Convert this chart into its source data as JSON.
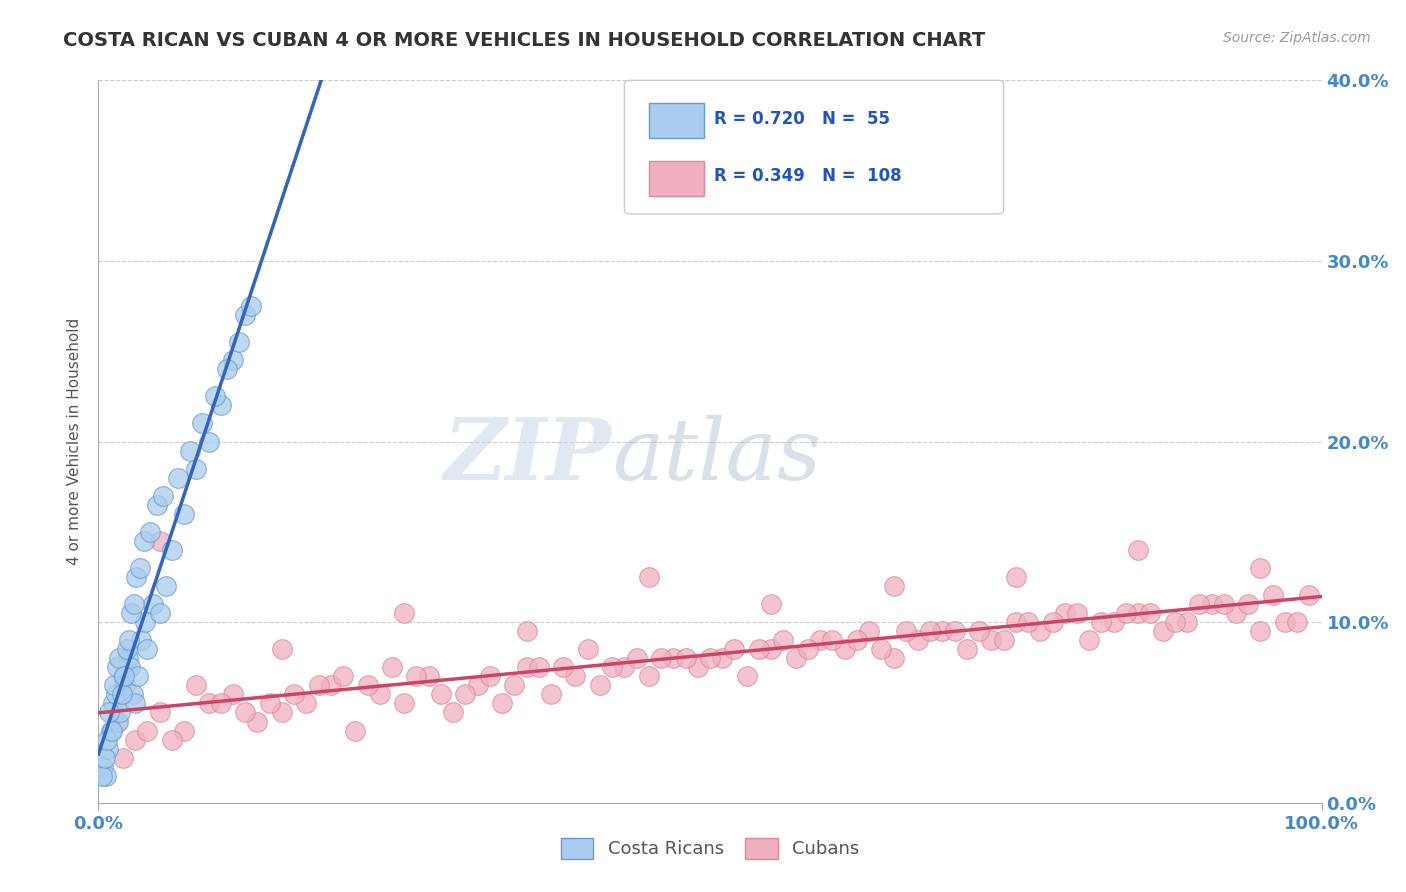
{
  "title": "COSTA RICAN VS CUBAN 4 OR MORE VEHICLES IN HOUSEHOLD CORRELATION CHART",
  "source": "Source: ZipAtlas.com",
  "ylabel": "4 or more Vehicles in Household",
  "ylabel_right_ticks": [
    "0.0%",
    "10.0%",
    "20.0%",
    "30.0%",
    "40.0%"
  ],
  "legend_costa": "Costa Ricans",
  "legend_cuban": "Cubans",
  "r_costa": "0.720",
  "n_costa": "55",
  "r_cuban": "0.349",
  "n_cuban": "108",
  "watermark_zip": "ZIP",
  "watermark_atlas": "atlas",
  "bg_color": "#ffffff",
  "plot_bg": "#ffffff",
  "grid_color": "#cccccc",
  "costa_color": "#aaccee",
  "cuban_color": "#f0b0c0",
  "costa_edge_color": "#6699cc",
  "cuban_edge_color": "#dd8899",
  "costa_line_color": "#3366bb",
  "cuban_line_color": "#cc4466",
  "title_color": "#333333",
  "source_color": "#999999",
  "axis_label_color": "#4488cc",
  "xlim": [
    0,
    100
  ],
  "ylim": [
    0,
    40
  ],
  "ytick_vals": [
    0,
    10,
    20,
    30,
    40
  ],
  "costa_scatter_x": [
    0.4,
    0.6,
    0.8,
    1.0,
    1.2,
    1.4,
    1.6,
    1.8,
    2.0,
    2.2,
    2.4,
    2.6,
    2.8,
    3.0,
    3.2,
    3.5,
    3.8,
    4.0,
    4.5,
    5.0,
    5.5,
    6.0,
    7.0,
    8.0,
    9.0,
    10.0,
    11.0,
    12.0,
    0.3,
    0.5,
    0.7,
    0.9,
    1.1,
    1.3,
    1.5,
    1.7,
    1.9,
    2.1,
    2.3,
    2.5,
    2.7,
    2.9,
    3.1,
    3.4,
    3.7,
    4.2,
    4.8,
    5.3,
    6.5,
    7.5,
    8.5,
    9.5,
    10.5,
    11.5,
    12.5
  ],
  "costa_scatter_y": [
    2.0,
    1.5,
    3.0,
    4.0,
    5.5,
    6.0,
    4.5,
    5.0,
    7.0,
    6.5,
    8.0,
    7.5,
    6.0,
    5.5,
    7.0,
    9.0,
    10.0,
    8.5,
    11.0,
    10.5,
    12.0,
    14.0,
    16.0,
    18.5,
    20.0,
    22.0,
    24.5,
    27.0,
    1.5,
    2.5,
    3.5,
    5.0,
    4.0,
    6.5,
    7.5,
    8.0,
    6.0,
    7.0,
    8.5,
    9.0,
    10.5,
    11.0,
    12.5,
    13.0,
    14.5,
    15.0,
    16.5,
    17.0,
    18.0,
    19.5,
    21.0,
    22.5,
    24.0,
    25.5,
    27.5
  ],
  "cuban_scatter_x": [
    1.5,
    3.0,
    5.0,
    7.0,
    9.0,
    11.0,
    13.0,
    15.0,
    17.0,
    19.0,
    21.0,
    23.0,
    25.0,
    27.0,
    29.0,
    31.0,
    33.0,
    35.0,
    37.0,
    39.0,
    41.0,
    43.0,
    45.0,
    47.0,
    49.0,
    51.0,
    53.0,
    55.0,
    57.0,
    59.0,
    61.0,
    63.0,
    65.0,
    67.0,
    69.0,
    71.0,
    73.0,
    75.0,
    77.0,
    79.0,
    81.0,
    83.0,
    85.0,
    87.0,
    89.0,
    91.0,
    93.0,
    95.0,
    97.0,
    99.0,
    4.0,
    8.0,
    14.0,
    20.0,
    28.0,
    36.0,
    44.0,
    52.0,
    60.0,
    68.0,
    76.0,
    84.0,
    92.0,
    98.0,
    6.0,
    12.0,
    18.0,
    26.0,
    34.0,
    42.0,
    50.0,
    58.0,
    66.0,
    74.0,
    82.0,
    90.0,
    10.0,
    16.0,
    24.0,
    32.0,
    40.0,
    48.0,
    56.0,
    64.0,
    72.0,
    80.0,
    88.0,
    96.0,
    2.0,
    22.0,
    30.0,
    38.0,
    46.0,
    54.0,
    62.0,
    70.0,
    78.0,
    86.0,
    94.0,
    5.0,
    15.0,
    25.0,
    35.0,
    45.0,
    55.0,
    65.0,
    75.0,
    85.0,
    95.0
  ],
  "cuban_scatter_y": [
    4.5,
    3.5,
    5.0,
    4.0,
    5.5,
    6.0,
    4.5,
    5.0,
    5.5,
    6.5,
    4.0,
    6.0,
    5.5,
    7.0,
    5.0,
    6.5,
    5.5,
    7.5,
    6.0,
    7.0,
    6.5,
    7.5,
    7.0,
    8.0,
    7.5,
    8.0,
    7.0,
    8.5,
    8.0,
    9.0,
    8.5,
    9.5,
    8.0,
    9.0,
    9.5,
    8.5,
    9.0,
    10.0,
    9.5,
    10.5,
    9.0,
    10.0,
    10.5,
    9.5,
    10.0,
    11.0,
    10.5,
    9.5,
    10.0,
    11.5,
    4.0,
    6.5,
    5.5,
    7.0,
    6.0,
    7.5,
    8.0,
    8.5,
    9.0,
    9.5,
    10.0,
    10.5,
    11.0,
    10.0,
    3.5,
    5.0,
    6.5,
    7.0,
    6.5,
    7.5,
    8.0,
    8.5,
    9.5,
    9.0,
    10.0,
    11.0,
    5.5,
    6.0,
    7.5,
    7.0,
    8.5,
    8.0,
    9.0,
    8.5,
    9.5,
    10.5,
    10.0,
    11.5,
    2.5,
    6.5,
    6.0,
    7.5,
    8.0,
    8.5,
    9.0,
    9.5,
    10.0,
    10.5,
    11.0,
    14.5,
    8.5,
    10.5,
    9.5,
    12.5,
    11.0,
    12.0,
    12.5,
    14.0,
    13.0
  ]
}
